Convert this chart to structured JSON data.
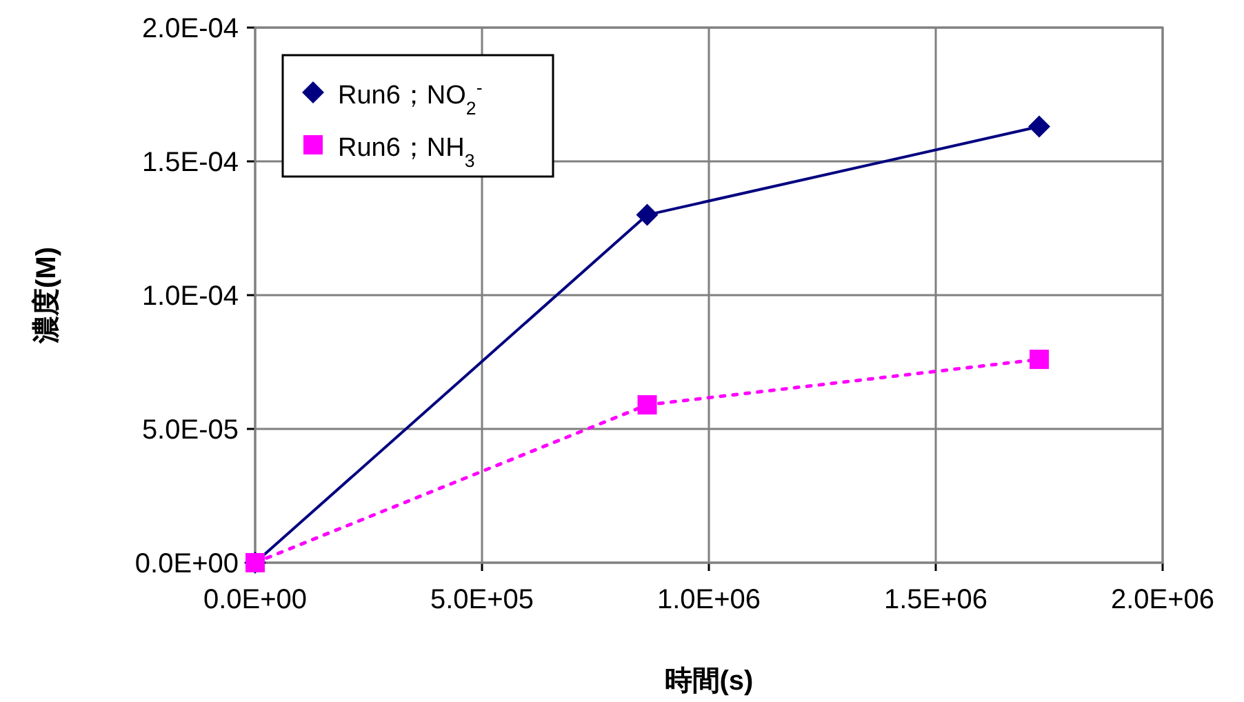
{
  "chart_data": {
    "type": "line",
    "xlabel": "時間(s)",
    "ylabel": "濃度(M)",
    "xlim": [
      0,
      2000000
    ],
    "ylim": [
      0,
      0.0002
    ],
    "xticks": [
      {
        "value": 0,
        "label": "0.0E+00"
      },
      {
        "value": 500000,
        "label": "5.0E+05"
      },
      {
        "value": 1000000,
        "label": "1.0E+06"
      },
      {
        "value": 1500000,
        "label": "1.5E+06"
      },
      {
        "value": 2000000,
        "label": "2.0E+06"
      }
    ],
    "yticks": [
      {
        "value": 0,
        "label": "0.0E+00"
      },
      {
        "value": 5e-05,
        "label": "5.0E-05"
      },
      {
        "value": 0.0001,
        "label": "1.0E-04"
      },
      {
        "value": 0.00015,
        "label": "1.5E-04"
      },
      {
        "value": 0.0002,
        "label": "2.0E-04"
      }
    ],
    "x": [
      0,
      864000,
      1728000
    ],
    "grid": true,
    "legend": "top left",
    "series": [
      {
        "name": "Run6；NO$_{2}$$^{-}$",
        "color": "#000080",
        "values": [
          0,
          0.00013,
          0.000163
        ],
        "marker": "diamond",
        "line_style": "solid"
      },
      {
        "name": "Run6；NH$_{3}$",
        "color": "#ff00ff",
        "values": [
          0,
          5.9e-05,
          7.6e-05
        ],
        "marker": "square",
        "line_style": "dotted"
      }
    ]
  }
}
